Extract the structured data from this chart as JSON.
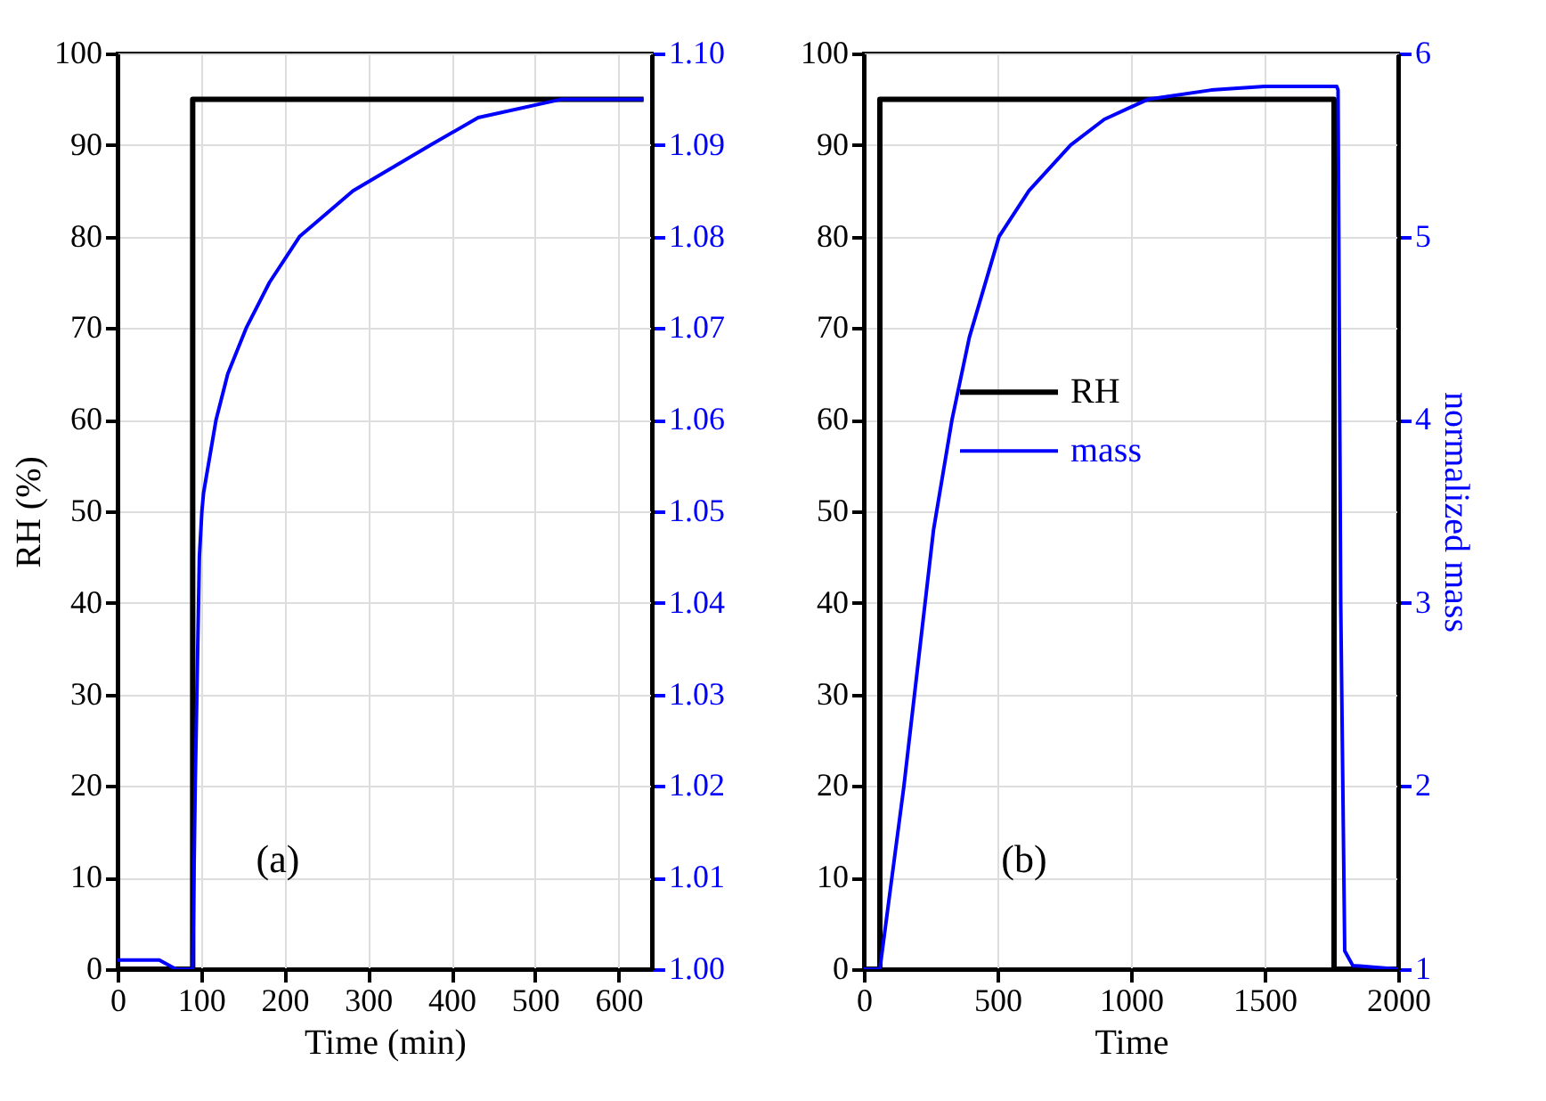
{
  "chart_data": [
    {
      "type": "line",
      "xlabel": "Time (min)",
      "ylabel": "RH (%)",
      "xlim": [
        0,
        640
      ],
      "xticks": [
        0,
        100,
        200,
        300,
        400,
        500,
        600
      ],
      "ylim": [
        0,
        100
      ],
      "yticks": [
        0,
        10,
        20,
        30,
        40,
        50,
        60,
        70,
        80,
        90,
        100
      ],
      "y2lim": [
        1.0,
        1.1
      ],
      "y2ticks": [
        {
          "value": 1.0,
          "label": "1.00"
        },
        {
          "value": 1.01,
          "label": "1.01"
        },
        {
          "value": 1.02,
          "label": "1.02"
        },
        {
          "value": 1.03,
          "label": "1.03"
        },
        {
          "value": 1.04,
          "label": "1.04"
        },
        {
          "value": 1.05,
          "label": "1.05"
        },
        {
          "value": 1.06,
          "label": "1.06"
        },
        {
          "value": 1.07,
          "label": "1.07"
        },
        {
          "value": 1.08,
          "label": "1.08"
        },
        {
          "value": 1.09,
          "label": "1.09"
        },
        {
          "value": 1.1,
          "label": "1.10"
        }
      ],
      "grid": true,
      "line_style": "solid",
      "marker": "none",
      "annotations": [
        "(a)"
      ],
      "series": [
        {
          "color": "#000000",
          "x": [
            0,
            90,
            90,
            630
          ],
          "values": [
            0,
            0,
            95,
            95
          ]
        },
        {
          "color": "#0000ff",
          "axis": "y2",
          "x": [
            0,
            50,
            70,
            90,
            93,
            98,
            101,
            103,
            118,
            132,
            154,
            182,
            218,
            282,
            375,
            432,
            532,
            630
          ],
          "values": [
            1.001,
            1.001,
            1.0,
            1.0,
            1.02,
            1.045,
            1.05,
            1.052,
            1.06,
            1.065,
            1.07,
            1.075,
            1.08,
            1.085,
            1.09,
            1.093,
            1.095,
            1.095
          ]
        }
      ]
    },
    {
      "type": "line",
      "xlabel": "Time",
      "y2label": "normalized mass",
      "xlim": [
        0,
        2000
      ],
      "xticks": [
        0,
        500,
        {
          "value": 1000,
          "label": "1000"
        },
        {
          "value": 1500,
          "label": "1500"
        },
        {
          "value": 2000,
          "label": "2000"
        }
      ],
      "ylim": [
        0,
        100
      ],
      "yticks": [
        0,
        10,
        20,
        30,
        40,
        50,
        60,
        70,
        80,
        90,
        100
      ],
      "y2lim": [
        1,
        6
      ],
      "y2ticks": [
        1,
        2,
        3,
        4,
        5,
        6
      ],
      "grid": true,
      "legend": "center left",
      "line_style": "solid",
      "marker": "none",
      "annotations": [
        "(b)"
      ],
      "series": [
        {
          "name": "RH",
          "color": "#000000",
          "x": [
            0,
            60,
            60,
            1760,
            1760,
            2000
          ],
          "values": [
            0,
            0,
            95,
            95,
            0,
            0
          ]
        },
        {
          "name": "mass",
          "color": "#0000ff",
          "axis": "y2",
          "x": [
            0,
            60,
            150,
            261,
            330,
            395,
            506,
            618,
            774,
            900,
            1064,
            1300,
            1500,
            1770,
            1775,
            1785,
            1800,
            1830,
            2000
          ],
          "values": [
            1.0,
            1.0,
            2.0,
            3.4,
            4.0,
            4.45,
            5.0,
            5.25,
            5.5,
            5.64,
            5.75,
            5.8,
            5.82,
            5.82,
            5.8,
            3.0,
            1.1,
            1.02,
            1.0
          ]
        }
      ]
    }
  ]
}
